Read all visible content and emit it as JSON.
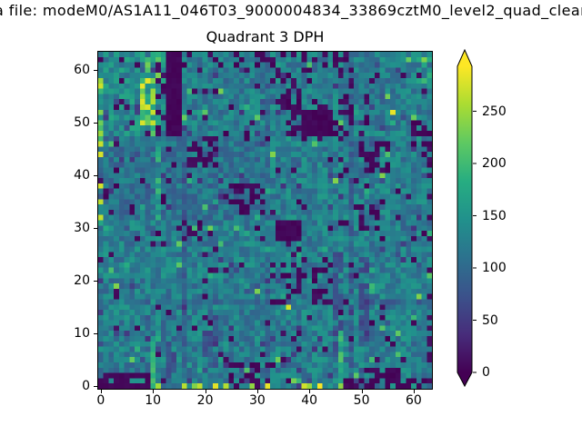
{
  "header": {
    "file_title": "a file: modeM0/AS1A11_046T03_9000004834_33869cztM0_level2_quad_clean",
    "plot_title": "Quadrant 3 DPH"
  },
  "chart_data": {
    "type": "heatmap",
    "title": "Quadrant 3 DPH",
    "xlabel": "",
    "ylabel": "",
    "grid": {
      "cols": 64,
      "rows": 64
    },
    "x_range": [
      -0.5,
      63.5
    ],
    "y_range": [
      -0.5,
      63.5
    ],
    "x_ticks": [
      0,
      10,
      20,
      30,
      40,
      50,
      60
    ],
    "y_ticks": [
      0,
      10,
      20,
      30,
      40,
      50,
      60
    ],
    "grid_lines": false,
    "colorbar": {
      "position": "right",
      "vmin": 0,
      "vmax": 293,
      "ticks": [
        0,
        50,
        100,
        150,
        200,
        250
      ],
      "extend": "both"
    },
    "colormap": {
      "name": "viridis",
      "stops": [
        [
          0.0,
          "#440154"
        ],
        [
          0.125,
          "#472d7b"
        ],
        [
          0.25,
          "#3b528b"
        ],
        [
          0.375,
          "#2c728e"
        ],
        [
          0.5,
          "#21918c"
        ],
        [
          0.625,
          "#27ad81"
        ],
        [
          0.75,
          "#5ec962"
        ],
        [
          0.875,
          "#aadc32"
        ],
        [
          1.0,
          "#fde725"
        ]
      ]
    },
    "base": {
      "mean": 124,
      "noise": 36,
      "seed": 33869
    },
    "value_summary": {
      "typical_range": [
        90,
        160
      ],
      "dead_pixel_value": 0,
      "hot_pixel_value": 290
    },
    "features": [
      {
        "mode": "speckle",
        "x0": 0,
        "x1": 63,
        "y0": 0,
        "y1": 63,
        "p": 0.045,
        "v": [
          0,
          15
        ]
      },
      {
        "mode": "speckle",
        "x0": 0,
        "x1": 63,
        "y0": 0,
        "y1": 63,
        "p": 0.03,
        "v": [
          40,
          80
        ]
      },
      {
        "mode": "speckle",
        "x0": 0,
        "x1": 63,
        "y0": 0,
        "y1": 63,
        "p": 0.02,
        "v": [
          165,
          240
        ]
      },
      {
        "mode": "scale",
        "x0": 16,
        "x1": 16,
        "y0": 0,
        "y1": 47,
        "v": 0.78
      },
      {
        "mode": "scale",
        "x0": 32,
        "x1": 32,
        "y0": 0,
        "y1": 63,
        "v": 0.8
      },
      {
        "mode": "scale",
        "x0": 48,
        "x1": 48,
        "y0": 0,
        "y1": 63,
        "v": 0.8
      },
      {
        "mode": "scale",
        "x0": 0,
        "x1": 63,
        "y0": 16,
        "y1": 16,
        "v": 0.82
      },
      {
        "mode": "scale",
        "x0": 0,
        "x1": 31,
        "y0": 32,
        "y1": 47,
        "v": 0.9
      },
      {
        "mode": "scale",
        "x0": 0,
        "x1": 15,
        "y0": 48,
        "y1": 63,
        "v": 1.12
      },
      {
        "mode": "speckle",
        "x0": 8,
        "x1": 11,
        "y0": 48,
        "y1": 63,
        "p": 0.55,
        "v": [
          170,
          290
        ]
      },
      {
        "mode": "speckle",
        "x0": 11,
        "x1": 12,
        "y0": 48,
        "y1": 63,
        "p": 0.35,
        "v": [
          0,
          15
        ]
      },
      {
        "mode": "speckle",
        "x0": 0,
        "x1": 0,
        "y0": 32,
        "y1": 62,
        "p": 0.35,
        "v": [
          190,
          290
        ]
      },
      {
        "mode": "speckle",
        "x0": 11,
        "x1": 11,
        "y0": 32,
        "y1": 46,
        "p": 0.5,
        "v": [
          150,
          200
        ]
      },
      {
        "mode": "fill",
        "x0": 13,
        "x1": 15,
        "y0": 48,
        "y1": 63,
        "v": [
          0,
          8
        ]
      },
      {
        "mode": "speckle",
        "x0": 17,
        "x1": 46,
        "y0": 61,
        "y1": 63,
        "p": 0.28,
        "v": [
          0,
          14
        ]
      },
      {
        "mode": "speckle",
        "x0": 33,
        "x1": 40,
        "y0": 53,
        "y1": 60,
        "p": 0.33,
        "v": [
          0,
          14
        ]
      },
      {
        "mode": "fill",
        "x0": 39,
        "x1": 44,
        "y0": 48,
        "y1": 52,
        "v": [
          0,
          10
        ]
      },
      {
        "mode": "speckle",
        "x0": 37,
        "x1": 46,
        "y0": 47,
        "y1": 54,
        "p": 0.3,
        "v": [
          0,
          12
        ]
      },
      {
        "mode": "speckle",
        "x0": 47,
        "x1": 48,
        "y0": 47,
        "y1": 63,
        "p": 0.3,
        "v": [
          0,
          15
        ]
      },
      {
        "mode": "speckle",
        "x0": 60,
        "x1": 63,
        "y0": 46,
        "y1": 50,
        "p": 0.7,
        "v": [
          0,
          10
        ]
      },
      {
        "mode": "speckle",
        "x0": 61,
        "x1": 63,
        "y0": 58,
        "y1": 62,
        "p": 0.5,
        "v": [
          160,
          240
        ]
      },
      {
        "mode": "speckle",
        "x0": 17,
        "x1": 22,
        "y0": 42,
        "y1": 46,
        "p": 0.55,
        "v": [
          0,
          12
        ]
      },
      {
        "mode": "speckle",
        "x0": 24,
        "x1": 31,
        "y0": 33,
        "y1": 38,
        "p": 0.5,
        "v": [
          0,
          12
        ]
      },
      {
        "mode": "speckle",
        "x0": 50,
        "x1": 55,
        "y0": 41,
        "y1": 46,
        "p": 0.4,
        "v": [
          0,
          12
        ]
      },
      {
        "mode": "speckle",
        "x0": 49,
        "x1": 53,
        "y0": 30,
        "y1": 34,
        "p": 0.4,
        "v": [
          0,
          12
        ]
      },
      {
        "mode": "speckle",
        "x0": 63,
        "x1": 63,
        "y0": 5,
        "y1": 45,
        "p": 0.25,
        "v": [
          0,
          15
        ]
      },
      {
        "mode": "fill",
        "x0": 34,
        "x1": 38,
        "y0": 28,
        "y1": 31,
        "v": [
          0,
          10
        ]
      },
      {
        "mode": "speckle",
        "x0": 16,
        "x1": 19,
        "y0": 28,
        "y1": 31,
        "p": 0.5,
        "v": [
          0,
          12
        ]
      },
      {
        "mode": "speckle",
        "x0": 33,
        "x1": 44,
        "y0": 16,
        "y1": 24,
        "p": 0.28,
        "v": [
          0,
          14
        ]
      },
      {
        "mode": "speckle",
        "x0": 45,
        "x1": 46,
        "y0": 5,
        "y1": 25,
        "p": 0.7,
        "v": [
          55,
          85
        ]
      },
      {
        "mode": "speckle",
        "x0": 50,
        "x1": 51,
        "y0": 8,
        "y1": 24,
        "p": 0.6,
        "v": [
          55,
          85
        ]
      },
      {
        "mode": "speckle",
        "x0": 13,
        "x1": 14,
        "y0": 2,
        "y1": 12,
        "p": 0.55,
        "v": [
          55,
          90
        ]
      },
      {
        "mode": "speckle",
        "x0": 20,
        "x1": 22,
        "y0": 3,
        "y1": 14,
        "p": 0.45,
        "v": [
          55,
          90
        ]
      },
      {
        "mode": "speckle",
        "x0": 25,
        "x1": 30,
        "y0": 0,
        "y1": 4,
        "p": 0.75,
        "v": [
          0,
          10
        ]
      },
      {
        "mode": "speckle",
        "x0": 0,
        "x1": 9,
        "y0": 0,
        "y1": 2,
        "p": 0.7,
        "v": [
          0,
          10
        ]
      },
      {
        "mode": "speckle",
        "x0": 47,
        "x1": 50,
        "y0": 0,
        "y1": 1,
        "p": 0.5,
        "v": [
          0,
          10
        ]
      },
      {
        "mode": "speckle",
        "x0": 51,
        "x1": 57,
        "y0": 0,
        "y1": 3,
        "p": 0.7,
        "v": [
          0,
          10
        ]
      },
      {
        "mode": "speckle",
        "x0": 59,
        "x1": 63,
        "y0": 0,
        "y1": 1,
        "p": 0.6,
        "v": [
          0,
          10
        ]
      },
      {
        "mode": "fill",
        "x0": 10,
        "x1": 10,
        "y0": 0,
        "y1": 8,
        "v": [
          150,
          215
        ]
      },
      {
        "mode": "fill",
        "x0": 46,
        "x1": 46,
        "y0": 0,
        "y1": 10,
        "v": [
          150,
          220
        ]
      },
      {
        "mode": "speckle",
        "x0": 10,
        "x1": 48,
        "y0": 0,
        "y1": 0,
        "p": 0.25,
        "v": [
          235,
          293
        ]
      },
      {
        "mode": "fill",
        "x0": 56,
        "x1": 56,
        "y0": 52,
        "y1": 52,
        "v": [
          275,
          290
        ]
      },
      {
        "mode": "fill",
        "x0": 36,
        "x1": 36,
        "y0": 15,
        "y1": 15,
        "v": [
          275,
          290
        ]
      },
      {
        "mode": "fill",
        "x0": 63,
        "x1": 63,
        "y0": 21,
        "y1": 21,
        "v": [
          200,
          215
        ]
      }
    ]
  }
}
